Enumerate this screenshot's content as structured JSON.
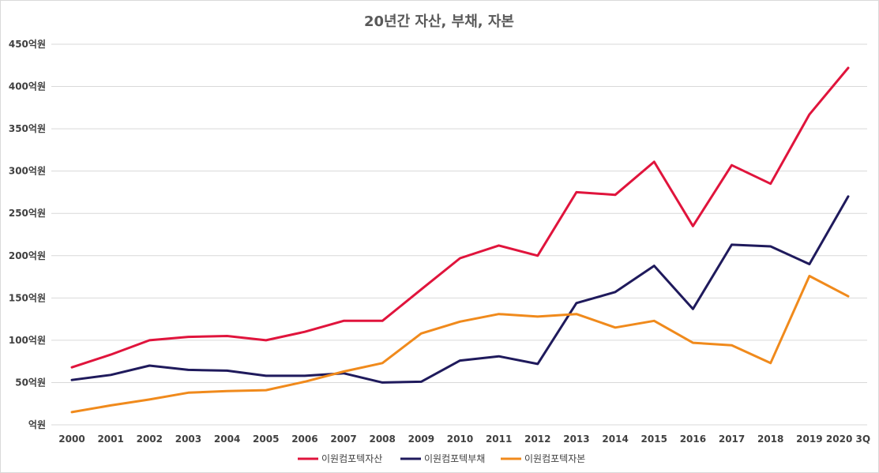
{
  "chart_data": {
    "type": "line",
    "title": "20년간 자산, 부채, 자본",
    "xlabel": "",
    "ylabel": "",
    "categories": [
      "2000",
      "2001",
      "2002",
      "2003",
      "2004",
      "2005",
      "2006",
      "2007",
      "2008",
      "2009",
      "2010",
      "2011",
      "2012",
      "2013",
      "2014",
      "2015",
      "2016",
      "2017",
      "2018",
      "2019",
      "2020 3Q"
    ],
    "ylim": [
      0,
      450
    ],
    "yticks": [
      0,
      50,
      100,
      150,
      200,
      250,
      300,
      350,
      400,
      450
    ],
    "ytick_labels": [
      "억원",
      "50억원",
      "100억원",
      "150억원",
      "200억원",
      "250억원",
      "300억원",
      "350억원",
      "400억원",
      "450억원"
    ],
    "grid": true,
    "legend_position": "bottom",
    "series": [
      {
        "name": "이원컴포텍자산",
        "color": "#e0143c",
        "values": [
          68,
          83,
          100,
          104,
          105,
          100,
          110,
          123,
          123,
          160,
          197,
          212,
          200,
          275,
          272,
          311,
          235,
          307,
          285,
          367,
          422
        ]
      },
      {
        "name": "이원컴포텍부채",
        "color": "#1f1a5c",
        "values": [
          53,
          59,
          70,
          65,
          64,
          58,
          58,
          61,
          50,
          51,
          76,
          81,
          72,
          144,
          157,
          188,
          137,
          213,
          211,
          190,
          270
        ]
      },
      {
        "name": "이원컴포텍자본",
        "color": "#f08a1c",
        "values": [
          15,
          23,
          30,
          38,
          40,
          41,
          51,
          63,
          73,
          108,
          122,
          131,
          128,
          131,
          115,
          123,
          97,
          94,
          73,
          176,
          152
        ]
      }
    ]
  }
}
